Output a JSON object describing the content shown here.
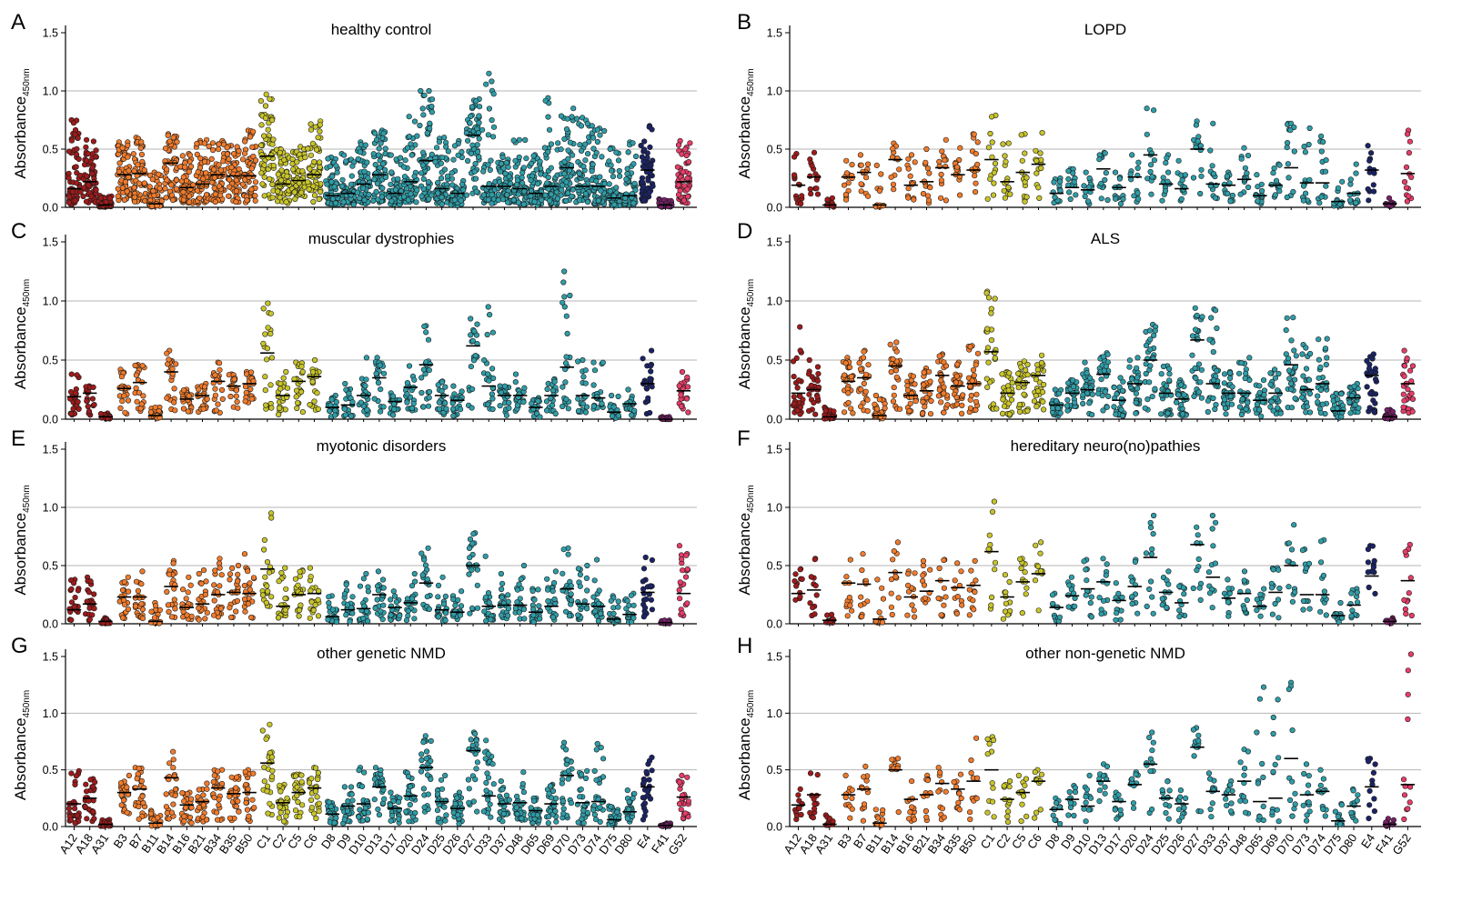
{
  "figure_title": "",
  "chart_data": {
    "type": "scatter",
    "subtype": "dot-plot-with-median",
    "ylabel": "Absorbance",
    "ylabel_subscript": "450nm",
    "ylim": [
      0,
      1.5
    ],
    "yticks": [
      "0.0",
      "0.5",
      "1.0",
      "1.5"
    ],
    "gridlines_at": [
      0.5,
      1.0
    ],
    "categories": [
      "A12",
      "A18",
      "A31",
      "B3",
      "B7",
      "B11",
      "B14",
      "B16",
      "B21",
      "B34",
      "B35",
      "B50",
      "C1",
      "C2",
      "C5",
      "C6",
      "D8",
      "D9",
      "D10",
      "D13",
      "D17",
      "D20",
      "D24",
      "D25",
      "D26",
      "D27",
      "D33",
      "D37",
      "D48",
      "D65",
      "D69",
      "D70",
      "D73",
      "D74",
      "D75",
      "D80",
      "E4",
      "F41",
      "G52"
    ],
    "group_colors": {
      "A": "#9e1b1b",
      "B": "#f07b2c",
      "C": "#c8c42a",
      "D": "#2f9da8",
      "E": "#1b2466",
      "F": "#7a1f6a",
      "G": "#e83d69"
    },
    "panels": [
      {
        "letter": "A",
        "title": "healthy control",
        "n": 60,
        "show_x_labels": false,
        "medians": [
          0.16,
          0.22,
          0.02,
          0.28,
          0.29,
          0.03,
          0.38,
          0.17,
          0.2,
          0.28,
          0.27,
          0.27,
          0.44,
          0.2,
          0.23,
          0.28,
          0.1,
          0.12,
          0.2,
          0.28,
          0.12,
          0.22,
          0.4,
          0.16,
          0.12,
          0.62,
          0.18,
          0.18,
          0.16,
          0.12,
          0.18,
          0.34,
          0.18,
          0.18,
          0.08,
          0.1,
          0.32,
          0.02,
          0.22
        ],
        "maxima": [
          0.75,
          0.58,
          0.1,
          0.56,
          0.6,
          0.3,
          0.63,
          0.46,
          0.58,
          0.57,
          0.53,
          0.66,
          0.97,
          0.5,
          0.52,
          0.74,
          0.43,
          0.46,
          0.56,
          0.66,
          0.45,
          0.78,
          1.0,
          0.6,
          0.57,
          0.93,
          1.15,
          0.45,
          0.58,
          0.45,
          0.94,
          0.85,
          0.77,
          0.7,
          0.51,
          0.56,
          0.7,
          0.07,
          0.57
        ]
      },
      {
        "letter": "B",
        "title": "LOPD",
        "n": 14,
        "show_x_labels": false,
        "medians": [
          0.19,
          0.26,
          0.02,
          0.26,
          0.3,
          0.02,
          0.41,
          0.19,
          0.22,
          0.34,
          0.28,
          0.32,
          0.41,
          0.22,
          0.3,
          0.37,
          0.12,
          0.17,
          0.15,
          0.33,
          0.17,
          0.26,
          0.45,
          0.2,
          0.16,
          0.5,
          0.2,
          0.19,
          0.24,
          0.1,
          0.19,
          0.34,
          0.21,
          0.21,
          0.05,
          0.12,
          0.32,
          0.03,
          0.29
        ],
        "maxima": [
          0.46,
          0.47,
          0.08,
          0.4,
          0.45,
          0.36,
          0.55,
          0.45,
          0.5,
          0.58,
          0.51,
          0.63,
          0.79,
          0.55,
          0.63,
          0.64,
          0.25,
          0.33,
          0.3,
          0.47,
          0.3,
          0.45,
          0.85,
          0.45,
          0.4,
          0.74,
          0.72,
          0.3,
          0.51,
          0.28,
          0.37,
          0.72,
          0.68,
          0.61,
          0.22,
          0.37,
          0.53,
          0.08,
          0.66
        ]
      },
      {
        "letter": "C",
        "title": "muscular dystrophies",
        "n": 22,
        "show_x_labels": false,
        "medians": [
          0.19,
          0.22,
          0.02,
          0.26,
          0.31,
          0.03,
          0.4,
          0.17,
          0.2,
          0.32,
          0.28,
          0.3,
          0.56,
          0.2,
          0.32,
          0.36,
          0.1,
          0.12,
          0.2,
          0.35,
          0.15,
          0.27,
          0.46,
          0.2,
          0.16,
          0.62,
          0.28,
          0.2,
          0.2,
          0.1,
          0.2,
          0.44,
          0.2,
          0.18,
          0.06,
          0.13,
          0.3,
          0.0,
          0.24
        ],
        "maxima": [
          0.38,
          0.28,
          0.05,
          0.42,
          0.46,
          0.1,
          0.58,
          0.25,
          0.3,
          0.48,
          0.38,
          0.4,
          0.98,
          0.4,
          0.48,
          0.5,
          0.2,
          0.3,
          0.52,
          0.52,
          0.22,
          0.45,
          0.79,
          0.32,
          0.28,
          0.85,
          0.95,
          0.28,
          0.38,
          0.18,
          0.34,
          1.25,
          0.5,
          0.48,
          0.2,
          0.25,
          0.58,
          0.02,
          0.4
        ]
      },
      {
        "letter": "D",
        "title": "ALS",
        "n": 28,
        "show_x_labels": false,
        "medians": [
          0.22,
          0.25,
          0.02,
          0.32,
          0.35,
          0.03,
          0.45,
          0.2,
          0.24,
          0.37,
          0.28,
          0.3,
          0.57,
          0.22,
          0.31,
          0.37,
          0.12,
          0.22,
          0.25,
          0.38,
          0.16,
          0.3,
          0.5,
          0.22,
          0.17,
          0.67,
          0.3,
          0.22,
          0.22,
          0.16,
          0.22,
          0.46,
          0.25,
          0.3,
          0.07,
          0.18,
          0.37,
          0.02,
          0.3
        ],
        "maxima": [
          0.78,
          0.5,
          0.1,
          0.52,
          0.58,
          0.2,
          0.65,
          0.37,
          0.43,
          0.55,
          0.48,
          0.62,
          1.08,
          0.4,
          0.49,
          0.54,
          0.25,
          0.33,
          0.48,
          0.56,
          0.35,
          0.52,
          0.8,
          0.45,
          0.33,
          0.94,
          0.93,
          0.4,
          0.52,
          0.33,
          0.42,
          0.86,
          0.63,
          0.68,
          0.22,
          0.3,
          0.55,
          0.08,
          0.58
        ]
      },
      {
        "letter": "E",
        "title": "myotonic disorders",
        "n": 22,
        "show_x_labels": false,
        "medians": [
          0.12,
          0.17,
          0.02,
          0.23,
          0.23,
          0.02,
          0.32,
          0.14,
          0.17,
          0.25,
          0.27,
          0.26,
          0.47,
          0.15,
          0.25,
          0.26,
          0.06,
          0.12,
          0.13,
          0.25,
          0.14,
          0.18,
          0.35,
          0.12,
          0.1,
          0.5,
          0.15,
          0.16,
          0.16,
          0.1,
          0.15,
          0.3,
          0.17,
          0.15,
          0.04,
          0.08,
          0.27,
          0.01,
          0.26
        ],
        "maxima": [
          0.38,
          0.4,
          0.05,
          0.4,
          0.45,
          0.18,
          0.54,
          0.4,
          0.46,
          0.56,
          0.5,
          0.6,
          0.95,
          0.48,
          0.46,
          0.48,
          0.24,
          0.35,
          0.43,
          0.45,
          0.28,
          0.43,
          0.65,
          0.4,
          0.28,
          0.78,
          0.58,
          0.43,
          0.5,
          0.3,
          0.45,
          0.65,
          0.5,
          0.55,
          0.24,
          0.26,
          0.57,
          0.03,
          0.67
        ]
      },
      {
        "letter": "F",
        "title": "hereditary neuro(no)pathies",
        "n": 12,
        "show_x_labels": false,
        "medians": [
          0.26,
          0.29,
          0.03,
          0.35,
          0.34,
          0.04,
          0.44,
          0.23,
          0.28,
          0.37,
          0.31,
          0.33,
          0.62,
          0.23,
          0.36,
          0.43,
          0.14,
          0.24,
          0.3,
          0.36,
          0.2,
          0.32,
          0.57,
          0.27,
          0.18,
          0.68,
          0.4,
          0.22,
          0.26,
          0.15,
          0.27,
          0.5,
          0.25,
          0.25,
          0.07,
          0.16,
          0.41,
          0.02,
          0.37
        ],
        "maxima": [
          0.47,
          0.56,
          0.08,
          0.55,
          0.6,
          0.38,
          0.7,
          0.45,
          0.54,
          0.55,
          0.52,
          0.54,
          1.05,
          0.42,
          0.56,
          0.7,
          0.26,
          0.4,
          0.55,
          0.56,
          0.35,
          0.55,
          0.93,
          0.45,
          0.33,
          0.83,
          0.93,
          0.38,
          0.45,
          0.3,
          0.48,
          0.85,
          0.64,
          0.72,
          0.18,
          0.3,
          0.67,
          0.05,
          0.68
        ]
      },
      {
        "letter": "G",
        "title": "other genetic NMD",
        "n": 26,
        "show_x_labels": true,
        "medians": [
          0.2,
          0.25,
          0.02,
          0.3,
          0.33,
          0.03,
          0.43,
          0.19,
          0.22,
          0.34,
          0.29,
          0.3,
          0.56,
          0.21,
          0.3,
          0.34,
          0.11,
          0.18,
          0.2,
          0.35,
          0.16,
          0.27,
          0.52,
          0.22,
          0.16,
          0.67,
          0.27,
          0.2,
          0.21,
          0.14,
          0.2,
          0.45,
          0.21,
          0.22,
          0.06,
          0.13,
          0.35,
          0.01,
          0.26
        ],
        "maxima": [
          0.49,
          0.42,
          0.06,
          0.45,
          0.52,
          0.14,
          0.66,
          0.3,
          0.38,
          0.5,
          0.44,
          0.5,
          0.9,
          0.37,
          0.46,
          0.52,
          0.22,
          0.35,
          0.52,
          0.52,
          0.3,
          0.48,
          0.8,
          0.45,
          0.3,
          0.83,
          0.76,
          0.4,
          0.48,
          0.25,
          0.37,
          0.74,
          0.49,
          0.73,
          0.18,
          0.32,
          0.61,
          0.03,
          0.45
        ]
      },
      {
        "letter": "H",
        "title": "other non-genetic NMD",
        "n": 12,
        "show_x_labels": true,
        "medians": [
          0.19,
          0.28,
          0.02,
          0.28,
          0.33,
          0.03,
          0.5,
          0.24,
          0.28,
          0.38,
          0.33,
          0.4,
          0.5,
          0.24,
          0.3,
          0.4,
          0.15,
          0.24,
          0.18,
          0.4,
          0.22,
          0.37,
          0.55,
          0.25,
          0.2,
          0.7,
          0.31,
          0.28,
          0.4,
          0.22,
          0.25,
          0.6,
          0.28,
          0.31,
          0.05,
          0.18,
          0.35,
          0.02,
          0.37
        ],
        "maxima": [
          0.33,
          0.47,
          0.1,
          0.45,
          0.53,
          0.15,
          0.6,
          0.4,
          0.45,
          0.52,
          0.46,
          0.78,
          0.79,
          0.4,
          0.45,
          0.5,
          0.25,
          0.36,
          0.45,
          0.55,
          0.3,
          0.48,
          0.83,
          0.4,
          0.32,
          0.87,
          0.47,
          0.4,
          0.68,
          1.23,
          1.12,
          1.27,
          0.55,
          0.5,
          0.2,
          0.33,
          0.6,
          0.07,
          1.52
        ]
      }
    ]
  }
}
